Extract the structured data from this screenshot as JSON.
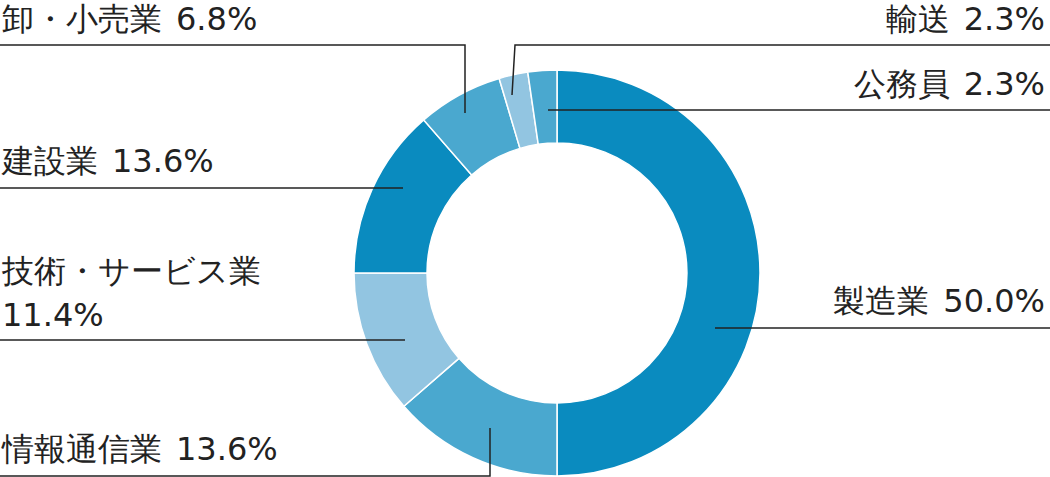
{
  "chart_data": {
    "type": "pie",
    "categories": [
      "製造業",
      "情報通信業",
      "技術・サービス業",
      "建設業",
      "卸・小売業",
      "輸送",
      "公務員"
    ],
    "values": [
      50.0,
      13.6,
      11.4,
      13.6,
      6.8,
      2.3,
      2.3
    ],
    "value_labels": [
      "50.0%",
      "13.6%",
      "11.4%",
      "13.6%",
      "6.8%",
      "2.3%",
      "2.3%"
    ],
    "colors": [
      "#0a8bbf",
      "#4aa8cf",
      "#92c5e1",
      "#0a8bbf",
      "#4aa8cf",
      "#92c5e1",
      "#4aa8cf"
    ],
    "data_labels": true
  }
}
